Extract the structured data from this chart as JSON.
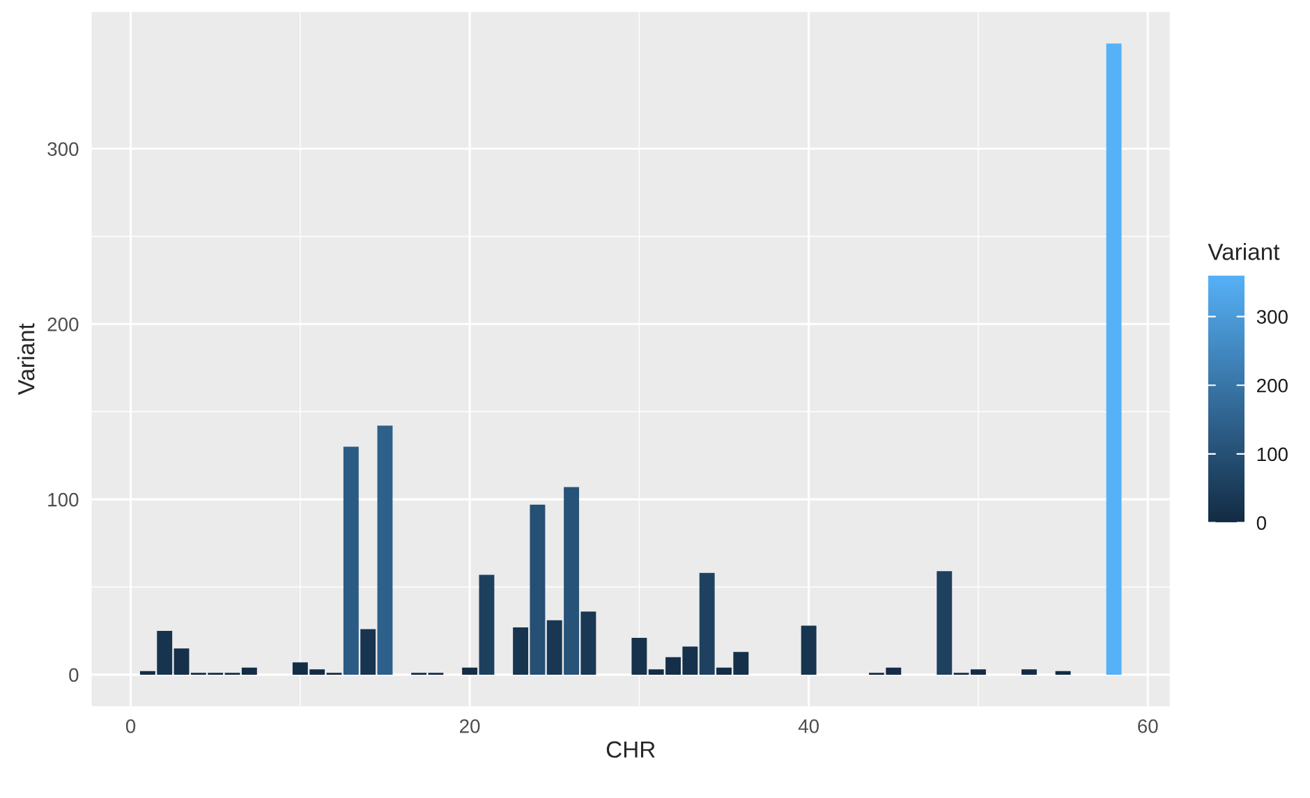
{
  "chart_data": {
    "type": "bar",
    "xlabel": "CHR",
    "ylabel": "Variant",
    "clabel": "Variant",
    "x": [
      1,
      2,
      3,
      4,
      5,
      6,
      7,
      10,
      11,
      12,
      13,
      14,
      15,
      17,
      18,
      20,
      21,
      23,
      24,
      25,
      26,
      27,
      30,
      31,
      32,
      33,
      34,
      35,
      36,
      40,
      44,
      45,
      48,
      49,
      50,
      53,
      55,
      58
    ],
    "values": [
      2,
      25,
      15,
      1,
      1,
      1,
      4,
      7,
      3,
      1,
      130,
      26,
      142,
      1,
      1,
      4,
      57,
      27,
      97,
      31,
      107,
      36,
      21,
      3,
      10,
      16,
      58,
      4,
      13,
      28,
      1,
      4,
      59,
      1,
      3,
      3,
      2,
      360
    ],
    "xlim": [
      -2.3,
      61.3
    ],
    "ylim": [
      -18,
      378
    ],
    "xticks": [
      0,
      20,
      40,
      60
    ],
    "yticks": [
      0,
      100,
      200,
      300
    ],
    "clim": [
      0,
      360
    ],
    "cticks": [
      0,
      100,
      200,
      300
    ],
    "grid": true
  }
}
